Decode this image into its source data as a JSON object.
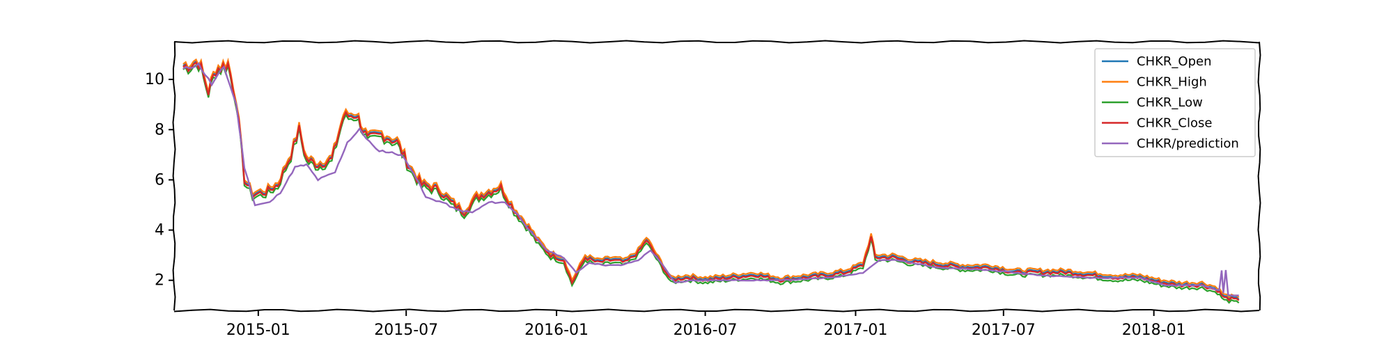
{
  "chart_data": {
    "type": "line",
    "title": "",
    "xlabel": "",
    "ylabel": "",
    "xlim": [
      "2014-09-20",
      "2018-05-10"
    ],
    "ylim": [
      0.8,
      11.5
    ],
    "x_ticks": [
      "2015-01",
      "2015-07",
      "2016-01",
      "2016-07",
      "2017-01",
      "2017-07",
      "2018-01"
    ],
    "x_tick_dates": [
      "2015-01-01",
      "2015-07-01",
      "2016-01-01",
      "2016-07-01",
      "2017-01-01",
      "2017-07-01",
      "2018-01-01"
    ],
    "y_ticks": [
      2,
      4,
      6,
      8,
      10
    ],
    "grid": false,
    "legend_position": "top-right",
    "series": [
      {
        "name": "CHKR_Open",
        "color": "#1f77b4"
      },
      {
        "name": "CHKR_High",
        "color": "#ff7f0e"
      },
      {
        "name": "CHKR_Low",
        "color": "#2ca02c"
      },
      {
        "name": "CHKR_Close",
        "color": "#d62728"
      },
      {
        "name": "CHKR/prediction",
        "color": "#9467bd"
      }
    ],
    "close_points": [
      [
        "2014-10-01",
        10.5
      ],
      [
        "2014-10-20",
        10.7
      ],
      [
        "2014-11-01",
        9.5
      ],
      [
        "2014-11-10",
        10.4
      ],
      [
        "2014-11-25",
        10.6
      ],
      [
        "2014-12-05",
        9.2
      ],
      [
        "2014-12-15",
        6.0
      ],
      [
        "2014-12-25",
        5.4
      ],
      [
        "2015-01-10",
        5.5
      ],
      [
        "2015-01-25",
        5.8
      ],
      [
        "2015-02-10",
        7.0
      ],
      [
        "2015-02-20",
        8.0
      ],
      [
        "2015-03-01",
        6.8
      ],
      [
        "2015-03-15",
        6.6
      ],
      [
        "2015-04-01",
        6.8
      ],
      [
        "2015-04-15",
        8.5
      ],
      [
        "2015-05-01",
        8.6
      ],
      [
        "2015-05-15",
        7.6
      ],
      [
        "2015-06-01",
        7.8
      ],
      [
        "2015-06-20",
        7.5
      ],
      [
        "2015-07-05",
        6.5
      ],
      [
        "2015-07-20",
        5.8
      ],
      [
        "2015-08-10",
        5.6
      ],
      [
        "2015-08-25",
        5.1
      ],
      [
        "2015-09-10",
        4.7
      ],
      [
        "2015-09-25",
        5.3
      ],
      [
        "2015-10-10",
        5.5
      ],
      [
        "2015-10-25",
        5.7
      ],
      [
        "2015-11-10",
        4.8
      ],
      [
        "2015-11-25",
        4.2
      ],
      [
        "2015-12-10",
        3.5
      ],
      [
        "2015-12-25",
        3.0
      ],
      [
        "2016-01-10",
        2.8
      ],
      [
        "2016-01-20",
        1.9
      ],
      [
        "2016-02-05",
        2.9
      ],
      [
        "2016-02-20",
        2.7
      ],
      [
        "2016-03-10",
        2.8
      ],
      [
        "2016-03-25",
        2.7
      ],
      [
        "2016-04-10",
        3.1
      ],
      [
        "2016-04-20",
        3.6
      ],
      [
        "2016-05-05",
        2.8
      ],
      [
        "2016-05-20",
        2.0
      ],
      [
        "2016-06-10",
        2.1
      ],
      [
        "2016-07-01",
        2.0
      ],
      [
        "2016-08-01",
        2.1
      ],
      [
        "2016-09-01",
        2.2
      ],
      [
        "2016-10-01",
        2.0
      ],
      [
        "2016-11-01",
        2.1
      ],
      [
        "2016-12-01",
        2.2
      ],
      [
        "2016-12-20",
        2.3
      ],
      [
        "2017-01-10",
        2.6
      ],
      [
        "2017-01-20",
        3.7
      ],
      [
        "2017-01-25",
        2.9
      ],
      [
        "2017-02-15",
        2.9
      ],
      [
        "2017-03-15",
        2.7
      ],
      [
        "2017-04-15",
        2.6
      ],
      [
        "2017-05-15",
        2.5
      ],
      [
        "2017-06-15",
        2.5
      ],
      [
        "2017-07-15",
        2.3
      ],
      [
        "2017-08-15",
        2.3
      ],
      [
        "2017-09-15",
        2.3
      ],
      [
        "2017-10-15",
        2.2
      ],
      [
        "2017-11-15",
        2.1
      ],
      [
        "2017-12-15",
        2.1
      ],
      [
        "2018-01-10",
        1.9
      ],
      [
        "2018-02-01",
        1.8
      ],
      [
        "2018-03-01",
        1.8
      ],
      [
        "2018-03-20",
        1.6
      ],
      [
        "2018-03-28",
        1.3
      ],
      [
        "2018-04-15",
        1.2
      ]
    ],
    "prediction_points": [
      [
        "2014-10-01",
        10.4
      ],
      [
        "2014-10-20",
        10.6
      ],
      [
        "2014-11-05",
        9.8
      ],
      [
        "2014-11-20",
        10.5
      ],
      [
        "2014-12-05",
        9.0
      ],
      [
        "2014-12-15",
        6.5
      ],
      [
        "2014-12-28",
        5.0
      ],
      [
        "2015-01-15",
        5.1
      ],
      [
        "2015-01-28",
        5.5
      ],
      [
        "2015-02-15",
        6.5
      ],
      [
        "2015-03-01",
        6.6
      ],
      [
        "2015-03-15",
        6.0
      ],
      [
        "2015-04-05",
        6.3
      ],
      [
        "2015-04-20",
        7.5
      ],
      [
        "2015-05-05",
        8.0
      ],
      [
        "2015-05-25",
        7.2
      ],
      [
        "2015-06-10",
        7.1
      ],
      [
        "2015-06-25",
        7.0
      ],
      [
        "2015-07-10",
        6.3
      ],
      [
        "2015-07-25",
        5.3
      ],
      [
        "2015-08-15",
        5.1
      ],
      [
        "2015-09-01",
        4.8
      ],
      [
        "2015-09-20",
        4.7
      ],
      [
        "2015-10-10",
        5.1
      ],
      [
        "2015-10-30",
        5.1
      ],
      [
        "2015-11-15",
        4.6
      ],
      [
        "2015-12-01",
        3.9
      ],
      [
        "2015-12-20",
        3.2
      ],
      [
        "2016-01-10",
        2.9
      ],
      [
        "2016-01-25",
        2.3
      ],
      [
        "2016-02-10",
        2.7
      ],
      [
        "2016-03-01",
        2.6
      ],
      [
        "2016-03-20",
        2.6
      ],
      [
        "2016-04-10",
        2.8
      ],
      [
        "2016-04-25",
        3.2
      ],
      [
        "2016-05-10",
        2.6
      ],
      [
        "2016-05-25",
        1.9
      ],
      [
        "2016-06-15",
        2.0
      ],
      [
        "2016-08-01",
        2.0
      ],
      [
        "2016-10-01",
        2.0
      ],
      [
        "2016-12-01",
        2.1
      ],
      [
        "2017-01-10",
        2.3
      ],
      [
        "2017-01-30",
        2.8
      ],
      [
        "2017-02-20",
        2.8
      ],
      [
        "2017-04-15",
        2.5
      ],
      [
        "2017-06-15",
        2.4
      ],
      [
        "2017-08-15",
        2.2
      ],
      [
        "2017-10-15",
        2.1
      ],
      [
        "2017-12-15",
        2.1
      ],
      [
        "2018-01-15",
        1.8
      ],
      [
        "2018-03-01",
        1.8
      ],
      [
        "2018-03-22",
        1.6
      ],
      [
        "2018-03-25",
        2.4
      ],
      [
        "2018-03-27",
        1.5
      ],
      [
        "2018-03-30",
        2.4
      ],
      [
        "2018-04-02",
        1.4
      ],
      [
        "2018-04-15",
        1.4
      ]
    ]
  }
}
